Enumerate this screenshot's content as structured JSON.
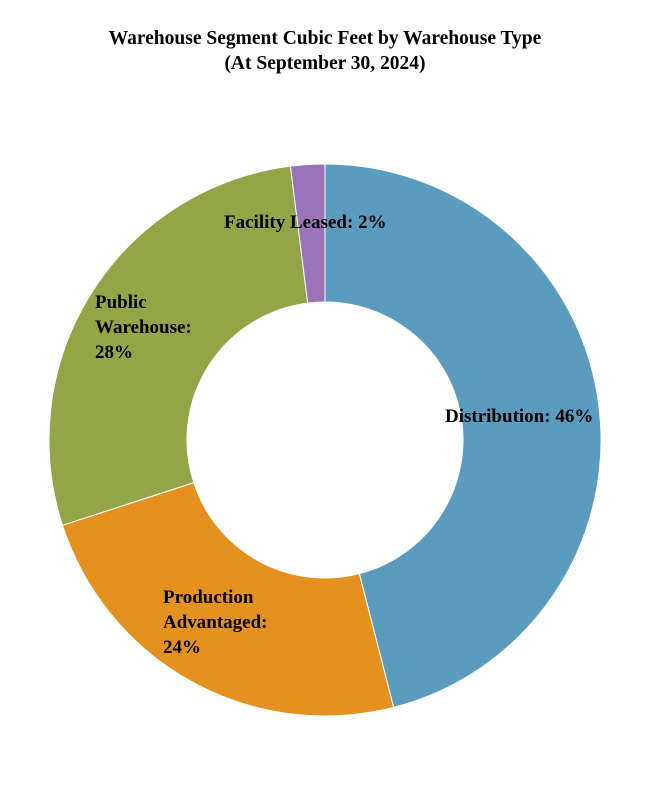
{
  "chart_data": {
    "type": "pie",
    "variant": "donut",
    "title": "Warehouse Segment Cubic Feet by Warehouse Type",
    "subtitle": "(At September 30, 2024)",
    "categories": [
      "Distribution",
      "Production Advantaged",
      "Public Warehouse",
      "Facility Leased"
    ],
    "values": [
      46,
      24,
      28,
      2
    ],
    "unit": "%",
    "colors": [
      "#5a9bbe",
      "#e4911f",
      "#94a547",
      "#9b73b9"
    ],
    "data_labels": [
      [
        "Distribution: 46%"
      ],
      [
        "Production",
        "Advantaged:",
        "24%"
      ],
      [
        "Public",
        "Warehouse:",
        "28%"
      ],
      [
        "Facility Leased: 2%"
      ]
    ],
    "start_angle_degrees": 0,
    "direction": "clockwise",
    "legend": "none"
  }
}
